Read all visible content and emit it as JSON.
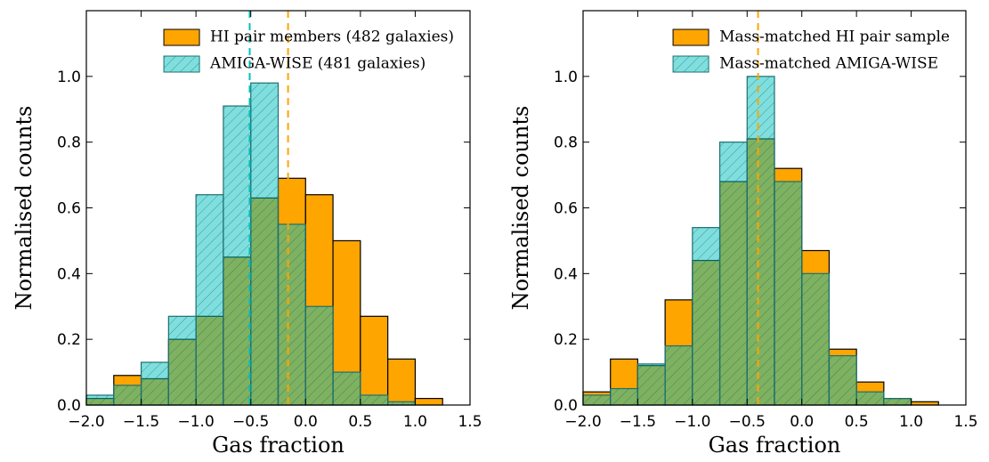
{
  "chart_data": [
    {
      "type": "histogram",
      "xlabel": "Gas fraction",
      "ylabel": "Normalised counts",
      "bins": [
        -2.0,
        -1.75,
        -1.5,
        -1.25,
        -1.0,
        -0.75,
        -0.5,
        -0.25,
        0.0,
        0.25,
        0.5,
        0.75,
        1.0,
        1.25
      ],
      "series": [
        {
          "name": "HI pair members (482 galaxies)",
          "color": "#ffa500",
          "values": [
            0.02,
            0.09,
            0.08,
            0.2,
            0.27,
            0.45,
            0.63,
            0.69,
            0.64,
            0.5,
            0.27,
            0.14,
            0.02
          ]
        },
        {
          "name": "AMIGA-WISE (481 galaxies)",
          "color": "#00bfbf",
          "hatch": true,
          "values": [
            0.03,
            0.06,
            0.13,
            0.27,
            0.64,
            0.91,
            0.98,
            0.55,
            0.3,
            0.1,
            0.03,
            0.01,
            0.0
          ]
        }
      ],
      "vlines": [
        {
          "value": -0.51,
          "color": "#00bfbf"
        },
        {
          "value": -0.16,
          "color": "#ffa500"
        }
      ],
      "xlim": [
        -2.0,
        1.5
      ],
      "ylim": [
        0,
        1.2
      ],
      "xticks": [
        {
          "value": -2.0,
          "label": "−2.0"
        },
        {
          "value": -1.5,
          "label": "−1.5"
        },
        {
          "value": -1.0,
          "label": "−1.0"
        },
        {
          "value": -0.5,
          "label": "−0.5"
        },
        {
          "value": 0.0,
          "label": "0.0"
        },
        {
          "value": 0.5,
          "label": "0.5"
        },
        {
          "value": 1.0,
          "label": "1.0"
        },
        {
          "value": 1.5,
          "label": "1.5"
        }
      ],
      "yticks": [
        {
          "value": 0.0,
          "label": "0.0"
        },
        0.2,
        0.4,
        0.6,
        0.8,
        {
          "value": 1.0,
          "label": "1.0"
        }
      ],
      "legend": "upper right"
    },
    {
      "type": "histogram",
      "xlabel": "Gas fraction",
      "ylabel": "Normalised counts",
      "bins": [
        -2.0,
        -1.75,
        -1.5,
        -1.25,
        -1.0,
        -0.75,
        -0.5,
        -0.25,
        0.0,
        0.25,
        0.5,
        0.75,
        1.0,
        1.25
      ],
      "series": [
        {
          "name": "Mass-matched HI pair sample",
          "color": "#ffa500",
          "values": [
            0.04,
            0.14,
            0.12,
            0.32,
            0.44,
            0.68,
            0.81,
            0.72,
            0.47,
            0.17,
            0.07,
            0.02,
            0.01
          ]
        },
        {
          "name": "Mass-matched AMIGA-WISE",
          "color": "#00bfbf",
          "hatch": true,
          "values": [
            0.03,
            0.05,
            0.125,
            0.18,
            0.54,
            0.8,
            1.0,
            0.68,
            0.4,
            0.15,
            0.04,
            0.02,
            0.0
          ]
        }
      ],
      "vlines": [
        {
          "value": -0.4,
          "color": "#ffa500"
        }
      ],
      "xlim": [
        -2.0,
        1.5
      ],
      "ylim": [
        0,
        1.2
      ],
      "xticks": [
        {
          "value": -2.0,
          "label": "−2.0"
        },
        {
          "value": -1.5,
          "label": "−1.5"
        },
        {
          "value": -1.0,
          "label": "−1.0"
        },
        {
          "value": -0.5,
          "label": "−0.5"
        },
        {
          "value": 0.0,
          "label": "0.0"
        },
        {
          "value": 0.5,
          "label": "0.5"
        },
        {
          "value": 1.0,
          "label": "1.0"
        },
        {
          "value": 1.5,
          "label": "1.5"
        }
      ],
      "yticks": [
        {
          "value": 0.0,
          "label": "0.0"
        },
        0.2,
        0.4,
        0.6,
        0.8,
        {
          "value": 1.0,
          "label": "1.0"
        }
      ],
      "legend": "upper right"
    }
  ]
}
